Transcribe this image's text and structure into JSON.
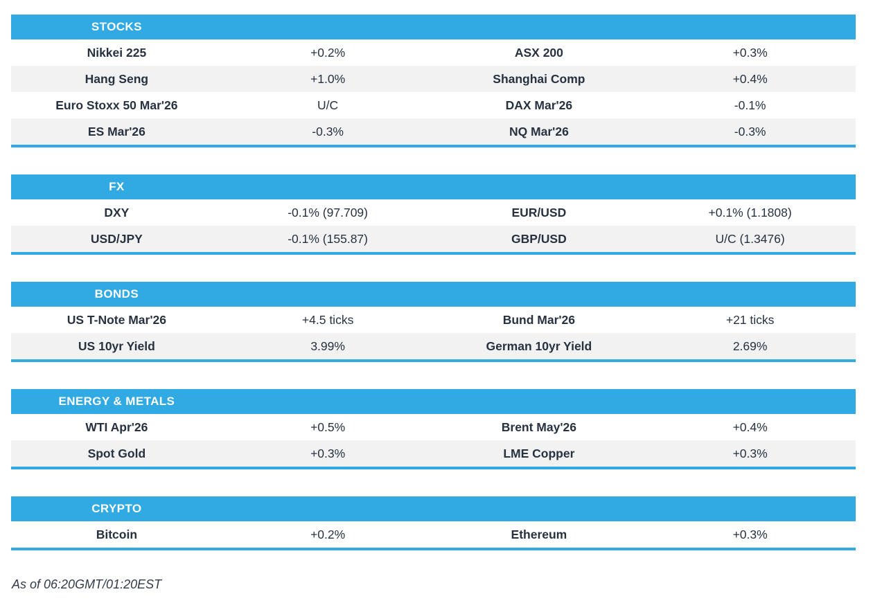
{
  "colors": {
    "accent": "#31A9E2",
    "row_alt": "#F2F2F2",
    "text": "#273140"
  },
  "sections": [
    {
      "title": "STOCKS",
      "rows": [
        [
          "Nikkei 225",
          "+0.2%",
          "ASX 200",
          "+0.3%"
        ],
        [
          "Hang Seng",
          "+1.0%",
          "Shanghai Comp",
          "+0.4%"
        ],
        [
          "Euro Stoxx 50 Mar'26",
          "U/C",
          "DAX Mar'26",
          "-0.1%"
        ],
        [
          "ES Mar'26",
          "-0.3%",
          "NQ Mar'26",
          "-0.3%"
        ]
      ]
    },
    {
      "title": "FX",
      "rows": [
        [
          "DXY",
          "-0.1% (97.709)",
          "EUR/USD",
          "+0.1% (1.1808)"
        ],
        [
          "USD/JPY",
          "-0.1% (155.87)",
          "GBP/USD",
          "U/C (1.3476)"
        ]
      ]
    },
    {
      "title": "BONDS",
      "rows": [
        [
          "US T-Note Mar'26",
          "+4.5 ticks",
          "Bund Mar'26",
          "+21 ticks"
        ],
        [
          "US 10yr Yield",
          "3.99%",
          "German 10yr Yield",
          "2.69%"
        ]
      ]
    },
    {
      "title": "ENERGY & METALS",
      "rows": [
        [
          "WTI Apr'26",
          "+0.5%",
          "Brent May'26",
          "+0.4%"
        ],
        [
          "Spot Gold",
          "+0.3%",
          "LME Copper",
          "+0.3%"
        ]
      ]
    },
    {
      "title": "CRYPTO",
      "rows": [
        [
          "Bitcoin",
          "+0.2%",
          "Ethereum",
          "+0.3%"
        ]
      ]
    }
  ],
  "footer": {
    "as_of": "As of 06:20GMT/01:20EST"
  }
}
